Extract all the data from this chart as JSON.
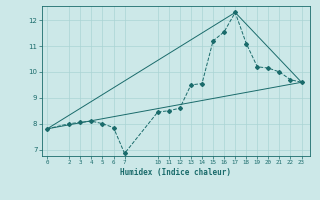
{
  "title": "",
  "xlabel": "Humidex (Indice chaleur)",
  "bg_color": "#cce8e8",
  "line_color": "#1a6b6b",
  "xlim": [
    -0.5,
    23.8
  ],
  "ylim": [
    6.75,
    12.55
  ],
  "xticks": [
    0,
    2,
    3,
    4,
    5,
    6,
    7,
    10,
    11,
    12,
    13,
    14,
    15,
    16,
    17,
    18,
    19,
    20,
    21,
    22,
    23
  ],
  "yticks": [
    7,
    8,
    9,
    10,
    11,
    12
  ],
  "line1_x": [
    0,
    2,
    3,
    4,
    5,
    6,
    7,
    10,
    11,
    12,
    13,
    14,
    15,
    16,
    17,
    18,
    19,
    20,
    21,
    22,
    23
  ],
  "line1_y": [
    7.8,
    8.0,
    8.05,
    8.1,
    8.0,
    7.85,
    6.85,
    8.45,
    8.5,
    8.6,
    9.5,
    9.55,
    11.2,
    11.55,
    12.3,
    11.1,
    10.2,
    10.15,
    10.0,
    9.7,
    9.6
  ],
  "line2_x": [
    0,
    23
  ],
  "line2_y": [
    7.8,
    9.6
  ],
  "line3_x": [
    0,
    17,
    23
  ],
  "line3_y": [
    7.8,
    12.3,
    9.6
  ],
  "grid_color": "#aad4d4"
}
